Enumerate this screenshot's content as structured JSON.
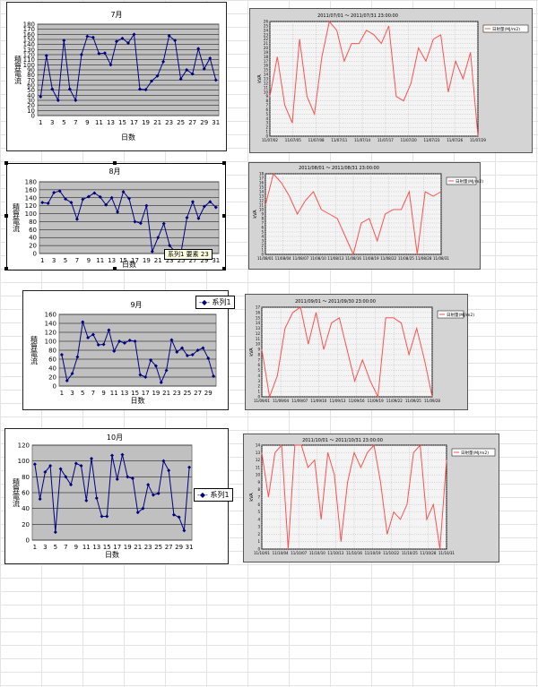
{
  "colors": {
    "left_series": "#000080",
    "left_plot_bg": "#c0c0c0",
    "right_series": "#ff5050",
    "right_plot_bg": "#f4f4f4"
  },
  "left_tooltip": "系列1 要素 23",
  "chart_data": [
    {
      "type": "line",
      "title": "7月",
      "xlabel": "日数",
      "ylabel": "積算電流",
      "x_tick_labels": [
        "1",
        "3",
        "5",
        "7",
        "9",
        "11",
        "13",
        "15",
        "17",
        "19",
        "21",
        "23",
        "25",
        "27",
        "29",
        "31"
      ],
      "ylim": [
        0,
        180
      ],
      "y_ticks": [
        0,
        10,
        20,
        30,
        40,
        50,
        60,
        70,
        80,
        90,
        100,
        110,
        120,
        130,
        140,
        150,
        160,
        170,
        180
      ],
      "categories": [
        1,
        2,
        3,
        4,
        5,
        6,
        7,
        8,
        9,
        10,
        11,
        12,
        13,
        14,
        15,
        16,
        17,
        18,
        19,
        20,
        21,
        22,
        23,
        24,
        25,
        26,
        27,
        28,
        29,
        30,
        31
      ],
      "values": [
        37,
        118,
        52,
        30,
        148,
        52,
        30,
        120,
        156,
        154,
        122,
        123,
        100,
        146,
        152,
        143,
        160,
        52,
        51,
        68,
        78,
        106,
        157,
        148,
        72,
        90,
        82,
        132,
        92,
        113,
        70
      ],
      "legend": null
    },
    {
      "type": "line",
      "title": "8月",
      "xlabel": "日数",
      "ylabel": "積算電流",
      "x_tick_labels": [
        "1",
        "3",
        "5",
        "7",
        "9",
        "11",
        "13",
        "15",
        "17",
        "19",
        "21",
        "23",
        "25",
        "27",
        "29",
        "31"
      ],
      "ylim": [
        0,
        180
      ],
      "y_ticks": [
        0,
        20,
        40,
        60,
        80,
        100,
        120,
        140,
        160,
        180
      ],
      "categories": [
        1,
        2,
        3,
        4,
        5,
        6,
        7,
        8,
        9,
        10,
        11,
        12,
        13,
        14,
        15,
        16,
        17,
        18,
        19,
        20,
        21,
        22,
        23,
        24,
        25,
        26,
        27,
        28,
        29,
        30,
        31
      ],
      "values": [
        128,
        126,
        153,
        157,
        137,
        128,
        86,
        136,
        143,
        152,
        142,
        122,
        140,
        104,
        155,
        138,
        80,
        76,
        120,
        5,
        40,
        75,
        20,
        3,
        5,
        90,
        130,
        88,
        118,
        130,
        116
      ],
      "legend": null
    },
    {
      "type": "line",
      "title": "9月",
      "xlabel": "日数",
      "ylabel": "積算電流",
      "x_tick_labels": [
        "1",
        "3",
        "5",
        "7",
        "9",
        "11",
        "13",
        "15",
        "17",
        "19",
        "21",
        "23",
        "25",
        "27",
        "29"
      ],
      "ylim": [
        0,
        160
      ],
      "y_ticks": [
        0,
        20,
        40,
        60,
        80,
        100,
        120,
        140,
        160
      ],
      "categories": [
        1,
        2,
        3,
        4,
        5,
        6,
        7,
        8,
        9,
        10,
        11,
        12,
        13,
        14,
        15,
        16,
        17,
        18,
        19,
        20,
        21,
        22,
        23,
        24,
        25,
        26,
        27,
        28,
        29,
        30
      ],
      "values": [
        70,
        12,
        28,
        65,
        143,
        108,
        115,
        92,
        93,
        125,
        78,
        100,
        96,
        102,
        100,
        25,
        20,
        58,
        45,
        8,
        35,
        103,
        76,
        85,
        68,
        70,
        80,
        85,
        62,
        22
      ],
      "legend": "系列1"
    },
    {
      "type": "line",
      "title": "10月",
      "xlabel": "日数",
      "ylabel": "積算電流",
      "x_tick_labels": [
        "1",
        "3",
        "5",
        "7",
        "9",
        "11",
        "13",
        "15",
        "17",
        "19",
        "21",
        "23",
        "25",
        "27",
        "29",
        "31"
      ],
      "ylim": [
        0,
        120
      ],
      "y_ticks": [
        0,
        20,
        40,
        60,
        80,
        100,
        120
      ],
      "categories": [
        1,
        2,
        3,
        4,
        5,
        6,
        7,
        8,
        9,
        10,
        11,
        12,
        13,
        14,
        15,
        16,
        17,
        18,
        19,
        20,
        21,
        22,
        23,
        24,
        25,
        26,
        27,
        28,
        29,
        30,
        31
      ],
      "values": [
        96,
        52,
        86,
        94,
        10,
        90,
        80,
        70,
        97,
        94,
        50,
        103,
        53,
        30,
        30,
        107,
        77,
        108,
        80,
        78,
        35,
        40,
        70,
        57,
        59,
        100,
        88,
        32,
        29,
        12,
        92
      ],
      "legend": "系列1"
    },
    {
      "type": "line",
      "title": "2011/07/01 〜 2011/07/31 23:00:00",
      "ylabel": "kVA",
      "x_tick_labels": [
        "11/07/02",
        "11/07/05",
        "11/07/08",
        "11/07/11",
        "11/07/14",
        "11/07/17",
        "11/07/20",
        "11/07/23",
        "11/07/26",
        "11/07/29"
      ],
      "ylim": [
        0,
        26
      ],
      "y_ticks": [
        0,
        1,
        2,
        3,
        4,
        5,
        6,
        7,
        8,
        9,
        10,
        11,
        12,
        13,
        14,
        15,
        16,
        17,
        18,
        19,
        20,
        21,
        22,
        23,
        24,
        25,
        26
      ],
      "values": [
        9,
        18,
        7,
        3,
        22,
        9,
        5,
        18,
        26,
        24,
        17,
        21,
        21,
        24,
        23,
        21,
        25,
        9,
        8,
        12,
        20,
        17,
        22,
        23,
        10,
        17,
        13,
        19,
        0
      ],
      "legend": "日射量(MJ/m2)"
    },
    {
      "type": "line",
      "title": "2011/08/01 〜 2011/08/31 23:00:00",
      "ylabel": "kVA",
      "x_tick_labels": [
        "11/08/01",
        "11/08/04",
        "11/08/07",
        "11/08/10",
        "11/08/13",
        "11/08/16",
        "11/08/19",
        "11/08/22",
        "11/08/25",
        "11/08/28",
        "11/08/31"
      ],
      "ylim": [
        0,
        18
      ],
      "y_ticks": [
        0,
        1,
        2,
        3,
        4,
        5,
        6,
        7,
        8,
        9,
        10,
        11,
        12,
        13,
        14,
        15,
        16,
        17,
        18
      ],
      "values": [
        11,
        18,
        16,
        13,
        9,
        12,
        14,
        10,
        9,
        8,
        4,
        0,
        7,
        8,
        3,
        9,
        10,
        10,
        14,
        0,
        14,
        13,
        14
      ],
      "legend": "日射量(MJ/m2)"
    },
    {
      "type": "line",
      "title": "2011/09/01 〜 2011/09/30 23:00:00",
      "ylabel": "kVA",
      "x_tick_labels": [
        "11/09/01",
        "11/09/04",
        "11/09/07",
        "11/09/10",
        "11/09/13",
        "11/09/16",
        "11/09/19",
        "11/09/22",
        "11/09/25",
        "11/09/28"
      ],
      "ylim": [
        0,
        17
      ],
      "y_ticks": [
        0,
        1,
        2,
        3,
        4,
        5,
        6,
        7,
        8,
        9,
        10,
        11,
        12,
        13,
        14,
        15,
        16,
        17
      ],
      "values": [
        9,
        0,
        4,
        13,
        16,
        17,
        10,
        16,
        9,
        14,
        15,
        9,
        3,
        7,
        3,
        0,
        15,
        15,
        14,
        8,
        13,
        7,
        0
      ],
      "legend": "日射量(MJ/m2)"
    },
    {
      "type": "line",
      "title": "2011/10/01 〜 2011/10/31 23:00:00",
      "ylabel": "kVA",
      "x_tick_labels": [
        "11/10/01",
        "11/10/04",
        "11/10/07",
        "11/10/10",
        "11/10/13",
        "11/10/16",
        "11/10/19",
        "11/10/22",
        "11/10/25",
        "11/10/28",
        "11/10/31"
      ],
      "ylim": [
        0,
        14
      ],
      "y_ticks": [
        0,
        1,
        2,
        3,
        4,
        5,
        6,
        7,
        8,
        9,
        10,
        11,
        12,
        13,
        14
      ],
      "values": [
        13,
        7,
        13,
        14,
        0,
        14,
        14,
        11,
        12,
        4,
        13,
        10,
        1,
        9,
        13,
        11,
        13,
        14,
        9,
        2,
        5,
        4,
        6,
        13,
        14,
        4,
        6,
        0,
        12
      ],
      "legend": "日射量(MJ/m2)"
    }
  ]
}
